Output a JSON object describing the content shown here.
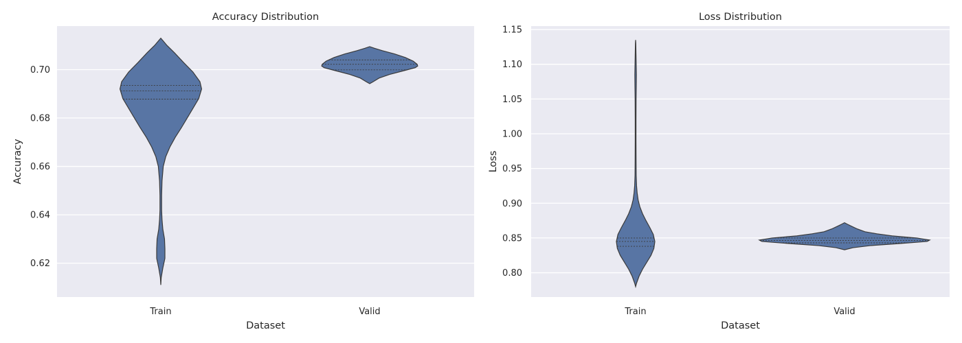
{
  "colors": {
    "background": "#ffffff",
    "plot_background": "#eaeaf2",
    "grid": "#ffffff",
    "violin_fill": "#5875a4",
    "violin_edge": "#3a3a3a"
  },
  "chart_data": [
    {
      "type": "violin",
      "title": "Accuracy Distribution",
      "xlabel": "Dataset",
      "ylabel": "Accuracy",
      "categories": [
        "Train",
        "Valid"
      ],
      "ylim": [
        0.606,
        0.718
      ],
      "yticks": [
        0.62,
        0.64,
        0.66,
        0.68,
        0.7
      ],
      "ytick_labels": [
        "0.62",
        "0.64",
        "0.66",
        "0.68",
        "0.70"
      ],
      "grid": true,
      "violins": [
        {
          "category": "Train",
          "min": 0.611,
          "max": 0.713,
          "quartiles": [
            0.6878,
            0.6912,
            0.6935
          ],
          "density": [
            [
              0.611,
              0.0
            ],
            [
              0.614,
              0.01
            ],
            [
              0.618,
              0.05
            ],
            [
              0.622,
              0.1
            ],
            [
              0.626,
              0.1
            ],
            [
              0.63,
              0.09
            ],
            [
              0.634,
              0.05
            ],
            [
              0.638,
              0.03
            ],
            [
              0.642,
              0.02
            ],
            [
              0.648,
              0.02
            ],
            [
              0.654,
              0.03
            ],
            [
              0.66,
              0.06
            ],
            [
              0.664,
              0.12
            ],
            [
              0.668,
              0.22
            ],
            [
              0.672,
              0.35
            ],
            [
              0.676,
              0.5
            ],
            [
              0.68,
              0.64
            ],
            [
              0.684,
              0.78
            ],
            [
              0.688,
              0.92
            ],
            [
              0.692,
              0.99
            ],
            [
              0.695,
              0.95
            ],
            [
              0.699,
              0.78
            ],
            [
              0.703,
              0.55
            ],
            [
              0.707,
              0.33
            ],
            [
              0.71,
              0.15
            ],
            [
              0.712,
              0.05
            ],
            [
              0.713,
              0.0
            ]
          ]
        },
        {
          "category": "Valid",
          "min": 0.6942,
          "max": 0.7095,
          "quartiles": [
            0.6999,
            0.7022,
            0.704
          ],
          "density": [
            [
              0.6942,
              0.0
            ],
            [
              0.695,
              0.07
            ],
            [
              0.6965,
              0.19
            ],
            [
              0.698,
              0.4
            ],
            [
              0.6995,
              0.68
            ],
            [
              0.7008,
              0.92
            ],
            [
              0.7015,
              0.97
            ],
            [
              0.7022,
              0.96
            ],
            [
              0.7035,
              0.88
            ],
            [
              0.705,
              0.72
            ],
            [
              0.7065,
              0.5
            ],
            [
              0.7078,
              0.26
            ],
            [
              0.7088,
              0.1
            ],
            [
              0.7095,
              0.0
            ]
          ]
        }
      ]
    },
    {
      "type": "violin",
      "title": "Loss Distribution",
      "xlabel": "Dataset",
      "ylabel": "Loss",
      "categories": [
        "Train",
        "Valid"
      ],
      "ylim": [
        0.765,
        1.155
      ],
      "yticks": [
        0.8,
        0.85,
        0.9,
        0.95,
        1.0,
        1.05,
        1.1,
        1.15
      ],
      "ytick_labels": [
        "0.80",
        "0.85",
        "0.90",
        "0.95",
        "1.00",
        "1.05",
        "1.10",
        "1.15"
      ],
      "grid": true,
      "violins": [
        {
          "category": "Train",
          "min": 0.78,
          "max": 1.135,
          "quartiles": [
            0.838,
            0.845,
            0.85
          ],
          "density": [
            [
              0.78,
              0.0
            ],
            [
              0.785,
              0.05
            ],
            [
              0.795,
              0.18
            ],
            [
              0.805,
              0.36
            ],
            [
              0.815,
              0.58
            ],
            [
              0.825,
              0.8
            ],
            [
              0.835,
              0.95
            ],
            [
              0.845,
              1.0
            ],
            [
              0.855,
              0.92
            ],
            [
              0.865,
              0.74
            ],
            [
              0.875,
              0.54
            ],
            [
              0.885,
              0.36
            ],
            [
              0.895,
              0.22
            ],
            [
              0.905,
              0.13
            ],
            [
              0.915,
              0.08
            ],
            [
              0.925,
              0.05
            ],
            [
              0.94,
              0.03
            ],
            [
              0.96,
              0.025
            ],
            [
              0.99,
              0.02
            ],
            [
              1.02,
              0.02
            ],
            [
              1.05,
              0.025
            ],
            [
              1.07,
              0.035
            ],
            [
              1.085,
              0.04
            ],
            [
              1.1,
              0.03
            ],
            [
              1.115,
              0.02
            ],
            [
              1.13,
              0.01
            ],
            [
              1.135,
              0.0
            ]
          ]
        },
        {
          "category": "Valid",
          "min": 0.833,
          "max": 0.872,
          "quartiles": [
            0.843,
            0.8465,
            0.85
          ],
          "density": [
            [
              0.833,
              0.0
            ],
            [
              0.836,
              0.1
            ],
            [
              0.839,
              0.3
            ],
            [
              0.842,
              0.65
            ],
            [
              0.845,
              0.97
            ],
            [
              0.847,
              1.0
            ],
            [
              0.85,
              0.85
            ],
            [
              0.853,
              0.56
            ],
            [
              0.856,
              0.38
            ],
            [
              0.859,
              0.24
            ],
            [
              0.863,
              0.15
            ],
            [
              0.867,
              0.08
            ],
            [
              0.87,
              0.03
            ],
            [
              0.872,
              0.0
            ]
          ]
        }
      ]
    }
  ]
}
